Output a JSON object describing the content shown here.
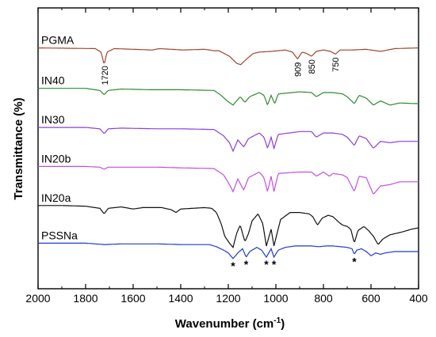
{
  "chart_data": {
    "type": "line",
    "title": "",
    "xlabel": "Wavenumber (cm",
    "xlabel_sup": "-1",
    "xlabel_close": ")",
    "ylabel": "Transmittance (%)",
    "xlim": [
      2000,
      400
    ],
    "x_reversed": true,
    "x_ticks": [
      "2000",
      "1800",
      "1600",
      "1400",
      "1200",
      "1000",
      "800",
      "600",
      "400"
    ],
    "y_ticks": [],
    "grid": false,
    "legend": "none",
    "series": [
      {
        "name": "PGMA",
        "color": "#a0452a",
        "baseline_transmittance": 46,
        "points": [
          [
            2000,
            0
          ],
          [
            1760,
            1
          ],
          [
            1735,
            6
          ],
          [
            1722,
            24
          ],
          [
            1710,
            6
          ],
          [
            1680,
            1
          ],
          [
            1520,
            3
          ],
          [
            1490,
            1
          ],
          [
            1390,
            3
          ],
          [
            1300,
            2
          ],
          [
            1260,
            4
          ],
          [
            1240,
            4
          ],
          [
            1195,
            12
          ],
          [
            1165,
            22
          ],
          [
            1148,
            24
          ],
          [
            1120,
            15
          ],
          [
            1095,
            8
          ],
          [
            1070,
            6
          ],
          [
            1020,
            5
          ],
          [
            990,
            4
          ],
          [
            960,
            3
          ],
          [
            930,
            6
          ],
          [
            909,
            16
          ],
          [
            890,
            6
          ],
          [
            870,
            8
          ],
          [
            850,
            12
          ],
          [
            830,
            5
          ],
          [
            800,
            3
          ],
          [
            770,
            5
          ],
          [
            750,
            9
          ],
          [
            730,
            3
          ],
          [
            680,
            3
          ],
          [
            620,
            2
          ],
          [
            560,
            5
          ],
          [
            500,
            1
          ],
          [
            400,
            0
          ]
        ]
      },
      {
        "name": "IN40",
        "color": "#2f8a2f",
        "baseline_transmittance": 104,
        "points": [
          [
            2000,
            0
          ],
          [
            1800,
            0
          ],
          [
            1740,
            3
          ],
          [
            1722,
            9
          ],
          [
            1705,
            3
          ],
          [
            1650,
            1
          ],
          [
            1520,
            2
          ],
          [
            1400,
            2
          ],
          [
            1260,
            3
          ],
          [
            1230,
            10
          ],
          [
            1205,
            18
          ],
          [
            1180,
            24
          ],
          [
            1150,
            12
          ],
          [
            1130,
            20
          ],
          [
            1110,
            12
          ],
          [
            1070,
            6
          ],
          [
            1050,
            10
          ],
          [
            1035,
            24
          ],
          [
            1020,
            10
          ],
          [
            1005,
            22
          ],
          [
            990,
            8
          ],
          [
            900,
            5
          ],
          [
            850,
            6
          ],
          [
            830,
            12
          ],
          [
            800,
            6
          ],
          [
            760,
            6
          ],
          [
            720,
            8
          ],
          [
            700,
            12
          ],
          [
            670,
            22
          ],
          [
            650,
            10
          ],
          [
            620,
            14
          ],
          [
            590,
            24
          ],
          [
            560,
            18
          ],
          [
            520,
            24
          ],
          [
            480,
            21
          ],
          [
            400,
            22
          ]
        ]
      },
      {
        "name": "IN30",
        "color": "#8a3fe0",
        "baseline_transmittance": 160,
        "points": [
          [
            2000,
            0
          ],
          [
            1800,
            0
          ],
          [
            1740,
            2
          ],
          [
            1722,
            9
          ],
          [
            1705,
            2
          ],
          [
            1650,
            1
          ],
          [
            1500,
            2
          ],
          [
            1400,
            2
          ],
          [
            1260,
            3
          ],
          [
            1220,
            12
          ],
          [
            1195,
            22
          ],
          [
            1180,
            34
          ],
          [
            1160,
            18
          ],
          [
            1135,
            28
          ],
          [
            1115,
            16
          ],
          [
            1070,
            8
          ],
          [
            1050,
            14
          ],
          [
            1035,
            30
          ],
          [
            1020,
            14
          ],
          [
            1008,
            30
          ],
          [
            990,
            10
          ],
          [
            900,
            6
          ],
          [
            850,
            6
          ],
          [
            830,
            14
          ],
          [
            800,
            8
          ],
          [
            760,
            8
          ],
          [
            720,
            10
          ],
          [
            700,
            14
          ],
          [
            670,
            26
          ],
          [
            650,
            12
          ],
          [
            620,
            16
          ],
          [
            590,
            30
          ],
          [
            560,
            20
          ],
          [
            520,
            22
          ],
          [
            480,
            20
          ],
          [
            400,
            20
          ]
        ]
      },
      {
        "name": "IN20b",
        "color": "#c24fe0",
        "baseline_transmittance": 216,
        "points": [
          [
            2000,
            0
          ],
          [
            1800,
            0
          ],
          [
            1740,
            1
          ],
          [
            1722,
            4
          ],
          [
            1705,
            1
          ],
          [
            1650,
            1
          ],
          [
            1500,
            1
          ],
          [
            1400,
            2
          ],
          [
            1260,
            3
          ],
          [
            1220,
            12
          ],
          [
            1195,
            26
          ],
          [
            1180,
            36
          ],
          [
            1160,
            18
          ],
          [
            1135,
            34
          ],
          [
            1115,
            16
          ],
          [
            1070,
            8
          ],
          [
            1050,
            16
          ],
          [
            1035,
            36
          ],
          [
            1020,
            14
          ],
          [
            1008,
            36
          ],
          [
            990,
            10
          ],
          [
            900,
            8
          ],
          [
            850,
            8
          ],
          [
            830,
            14
          ],
          [
            800,
            8
          ],
          [
            775,
            14
          ],
          [
            760,
            10
          ],
          [
            720,
            12
          ],
          [
            700,
            16
          ],
          [
            670,
            36
          ],
          [
            650,
            14
          ],
          [
            620,
            16
          ],
          [
            590,
            40
          ],
          [
            560,
            28
          ],
          [
            520,
            26
          ],
          [
            480,
            22
          ],
          [
            400,
            22
          ]
        ]
      },
      {
        "name": "IN20a",
        "color": "#111111",
        "baseline_transmittance": 272,
        "points": [
          [
            2000,
            0
          ],
          [
            1900,
            0
          ],
          [
            1800,
            1
          ],
          [
            1740,
            4
          ],
          [
            1722,
            12
          ],
          [
            1705,
            4
          ],
          [
            1650,
            2
          ],
          [
            1600,
            5
          ],
          [
            1560,
            3
          ],
          [
            1480,
            3
          ],
          [
            1440,
            6
          ],
          [
            1420,
            10
          ],
          [
            1400,
            5
          ],
          [
            1300,
            3
          ],
          [
            1270,
            4
          ],
          [
            1250,
            10
          ],
          [
            1230,
            26
          ],
          [
            1215,
            44
          ],
          [
            1195,
            54
          ],
          [
            1180,
            60
          ],
          [
            1165,
            40
          ],
          [
            1150,
            28
          ],
          [
            1130,
            52
          ],
          [
            1115,
            40
          ],
          [
            1100,
            22
          ],
          [
            1075,
            12
          ],
          [
            1055,
            26
          ],
          [
            1040,
            58
          ],
          [
            1030,
            46
          ],
          [
            1020,
            34
          ],
          [
            1008,
            58
          ],
          [
            995,
            40
          ],
          [
            980,
            20
          ],
          [
            940,
            10
          ],
          [
            900,
            10
          ],
          [
            860,
            12
          ],
          [
            845,
            16
          ],
          [
            825,
            28
          ],
          [
            805,
            18
          ],
          [
            780,
            14
          ],
          [
            760,
            16
          ],
          [
            735,
            24
          ],
          [
            720,
            28
          ],
          [
            700,
            30
          ],
          [
            685,
            34
          ],
          [
            670,
            54
          ],
          [
            655,
            36
          ],
          [
            630,
            30
          ],
          [
            610,
            36
          ],
          [
            590,
            44
          ],
          [
            570,
            56
          ],
          [
            550,
            48
          ],
          [
            520,
            42
          ],
          [
            470,
            38
          ],
          [
            430,
            34
          ],
          [
            400,
            32
          ]
        ]
      },
      {
        "name": "PSSNa",
        "color": "#1f3ad6",
        "baseline_transmittance": 326,
        "points": [
          [
            2000,
            0
          ],
          [
            1800,
            0
          ],
          [
            1760,
            1
          ],
          [
            1720,
            2
          ],
          [
            1650,
            1
          ],
          [
            1500,
            1
          ],
          [
            1400,
            2
          ],
          [
            1280,
            2
          ],
          [
            1250,
            5
          ],
          [
            1220,
            10
          ],
          [
            1200,
            14
          ],
          [
            1180,
            22
          ],
          [
            1160,
            14
          ],
          [
            1140,
            8
          ],
          [
            1125,
            20
          ],
          [
            1110,
            12
          ],
          [
            1080,
            6
          ],
          [
            1060,
            10
          ],
          [
            1040,
            20
          ],
          [
            1030,
            14
          ],
          [
            1020,
            8
          ],
          [
            1008,
            20
          ],
          [
            990,
            10
          ],
          [
            960,
            6
          ],
          [
            920,
            4
          ],
          [
            880,
            4
          ],
          [
            850,
            4
          ],
          [
            820,
            5
          ],
          [
            790,
            4
          ],
          [
            760,
            4
          ],
          [
            730,
            5
          ],
          [
            700,
            6
          ],
          [
            680,
            8
          ],
          [
            670,
            16
          ],
          [
            660,
            10
          ],
          [
            640,
            8
          ],
          [
            620,
            12
          ],
          [
            600,
            18
          ],
          [
            580,
            14
          ],
          [
            560,
            16
          ],
          [
            540,
            14
          ],
          [
            500,
            12
          ],
          [
            450,
            12
          ],
          [
            400,
            12
          ]
        ]
      }
    ],
    "annotations": [
      {
        "text": "1720",
        "x": 1720,
        "series": "PGMA"
      },
      {
        "text": "909",
        "x": 909,
        "series": "PGMA"
      },
      {
        "text": "850",
        "x": 850,
        "series": "PGMA"
      },
      {
        "text": "750",
        "x": 750,
        "series": "PGMA"
      }
    ],
    "markers": [
      {
        "text": "*",
        "x": 1180,
        "series": "PSSNa"
      },
      {
        "text": "*",
        "x": 1125,
        "series": "PSSNa"
      },
      {
        "text": "*",
        "x": 1040,
        "series": "PSSNa"
      },
      {
        "text": "*",
        "x": 1008,
        "series": "PSSNa"
      },
      {
        "text": "*",
        "x": 670,
        "series": "PSSNa"
      }
    ]
  }
}
